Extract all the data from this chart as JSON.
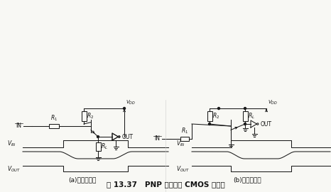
{
  "bg_color": "#f8f8f4",
  "fig_width": 4.66,
  "fig_height": 2.71,
  "dpi": 100,
  "title": "图 13.37   PNP 晶体管与 CMOS 的接口",
  "subtitle_a": "(a)发射极接地",
  "subtitle_b": "(b)射极跟随器",
  "line_color": "#1a1a1a",
  "text_color": "#111111"
}
